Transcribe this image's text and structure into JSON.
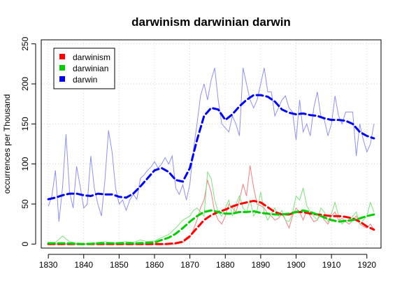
{
  "chart_data": {
    "type": "line",
    "title": "darwinism darwinian darwin",
    "xlabel": "",
    "ylabel": "occurrences per Thousand",
    "xlim": [
      1828,
      1924
    ],
    "ylim": [
      -5,
      255
    ],
    "xticks": [
      1830,
      1840,
      1850,
      1860,
      1870,
      1880,
      1890,
      1900,
      1910,
      1920
    ],
    "yticks": [
      0,
      50,
      100,
      150,
      200,
      250
    ],
    "grid": true,
    "legend_position": "top-left",
    "series": [
      {
        "name": "darwinism",
        "color": "#ff0000",
        "raw_color": "#f08080",
        "smooth": {
          "x": [
            1830,
            1835,
            1840,
            1845,
            1850,
            1855,
            1860,
            1863,
            1866,
            1868,
            1870,
            1872,
            1874,
            1876,
            1878,
            1880,
            1882,
            1884,
            1886,
            1888,
            1890,
            1892,
            1894,
            1896,
            1898,
            1900,
            1902,
            1904,
            1906,
            1908,
            1910,
            1912,
            1914,
            1916,
            1918,
            1920,
            1922
          ],
          "y": [
            0,
            0,
            0,
            0,
            0,
            0,
            0,
            0,
            1,
            3,
            10,
            20,
            30,
            36,
            40,
            43,
            47,
            50,
            52,
            54,
            52,
            46,
            40,
            37,
            37,
            40,
            40,
            38,
            37,
            36,
            35,
            35,
            34,
            32,
            28,
            22,
            18
          ]
        },
        "raw": {
          "x": [
            1830,
            1832,
            1834,
            1836,
            1838,
            1840,
            1842,
            1844,
            1846,
            1848,
            1850,
            1852,
            1854,
            1856,
            1858,
            1860,
            1862,
            1864,
            1866,
            1868,
            1870,
            1871,
            1872,
            1873,
            1874,
            1875,
            1876,
            1877,
            1878,
            1879,
            1880,
            1881,
            1882,
            1883,
            1884,
            1885,
            1886,
            1887,
            1888,
            1889,
            1890,
            1891,
            1892,
            1893,
            1894,
            1895,
            1896,
            1897,
            1898,
            1899,
            1900,
            1901,
            1902,
            1903,
            1904,
            1905,
            1906,
            1907,
            1908,
            1909,
            1910,
            1911,
            1912,
            1913,
            1914,
            1915,
            1916,
            1917,
            1918,
            1919,
            1920,
            1921,
            1922
          ],
          "y": [
            0,
            0,
            0,
            0,
            0,
            0,
            0,
            0,
            0,
            0,
            0,
            0,
            0,
            0,
            0,
            0,
            0,
            0,
            0,
            2,
            8,
            18,
            30,
            45,
            55,
            80,
            65,
            40,
            30,
            25,
            35,
            50,
            45,
            40,
            55,
            75,
            60,
            98,
            70,
            50,
            48,
            45,
            38,
            35,
            30,
            32,
            38,
            30,
            20,
            35,
            45,
            40,
            30,
            42,
            35,
            28,
            30,
            38,
            30,
            25,
            35,
            40,
            30,
            32,
            28,
            25,
            30,
            35,
            25,
            22,
            20,
            25,
            18
          ]
        }
      },
      {
        "name": "darwinian",
        "color": "#00cc00",
        "raw_color": "#80e080",
        "smooth": {
          "x": [
            1830,
            1835,
            1840,
            1845,
            1850,
            1855,
            1860,
            1862,
            1864,
            1866,
            1868,
            1870,
            1872,
            1874,
            1876,
            1878,
            1880,
            1882,
            1884,
            1886,
            1888,
            1890,
            1892,
            1894,
            1896,
            1898,
            1900,
            1902,
            1904,
            1906,
            1908,
            1910,
            1912,
            1914,
            1916,
            1918,
            1920,
            1922
          ],
          "y": [
            1,
            1,
            0,
            1,
            1,
            1,
            2,
            5,
            8,
            13,
            20,
            28,
            35,
            40,
            42,
            40,
            38,
            38,
            40,
            40,
            41,
            39,
            38,
            37,
            37,
            38,
            40,
            42,
            40,
            37,
            33,
            30,
            28,
            29,
            30,
            32,
            35,
            37
          ]
        },
        "raw": {
          "x": [
            1830,
            1832,
            1834,
            1836,
            1838,
            1840,
            1842,
            1844,
            1846,
            1848,
            1850,
            1852,
            1854,
            1856,
            1858,
            1860,
            1862,
            1864,
            1866,
            1868,
            1870,
            1871,
            1872,
            1873,
            1874,
            1875,
            1876,
            1877,
            1878,
            1879,
            1880,
            1881,
            1882,
            1883,
            1884,
            1885,
            1886,
            1887,
            1888,
            1889,
            1890,
            1891,
            1892,
            1893,
            1894,
            1895,
            1896,
            1897,
            1898,
            1899,
            1900,
            1901,
            1902,
            1903,
            1904,
            1905,
            1906,
            1907,
            1908,
            1909,
            1910,
            1911,
            1912,
            1913,
            1914,
            1915,
            1916,
            1917,
            1918,
            1919,
            1920,
            1921,
            1922
          ],
          "y": [
            0,
            2,
            10,
            3,
            1,
            0,
            1,
            2,
            3,
            1,
            2,
            3,
            2,
            5,
            3,
            4,
            8,
            12,
            20,
            30,
            35,
            42,
            45,
            40,
            35,
            90,
            82,
            55,
            40,
            35,
            45,
            55,
            35,
            50,
            60,
            45,
            40,
            55,
            35,
            42,
            65,
            40,
            30,
            38,
            45,
            35,
            42,
            30,
            28,
            38,
            60,
            55,
            70,
            48,
            40,
            35,
            30,
            45,
            40,
            28,
            38,
            52,
            35,
            25,
            30,
            28,
            35,
            40,
            25,
            30,
            35,
            52,
            40
          ]
        }
      },
      {
        "name": "darwin",
        "color": "#0000ee",
        "raw_color": "#9090f0",
        "smooth": {
          "x": [
            1830,
            1832,
            1834,
            1836,
            1838,
            1840,
            1842,
            1844,
            1846,
            1848,
            1850,
            1852,
            1854,
            1856,
            1858,
            1860,
            1862,
            1864,
            1866,
            1868,
            1870,
            1872,
            1874,
            1876,
            1878,
            1880,
            1882,
            1884,
            1886,
            1888,
            1890,
            1892,
            1894,
            1896,
            1898,
            1900,
            1902,
            1904,
            1906,
            1908,
            1910,
            1912,
            1914,
            1916,
            1918,
            1920,
            1922
          ],
          "y": [
            56,
            58,
            61,
            63,
            63,
            61,
            60,
            63,
            62,
            62,
            59,
            58,
            63,
            72,
            82,
            92,
            95,
            90,
            80,
            78,
            95,
            130,
            160,
            170,
            168,
            155,
            162,
            172,
            180,
            186,
            186,
            184,
            178,
            168,
            164,
            162,
            163,
            161,
            160,
            157,
            155,
            155,
            154,
            150,
            140,
            135,
            132
          ]
        },
        "raw": {
          "x": [
            1830,
            1831,
            1832,
            1833,
            1834,
            1835,
            1836,
            1837,
            1838,
            1839,
            1840,
            1841,
            1842,
            1843,
            1844,
            1845,
            1846,
            1847,
            1848,
            1849,
            1850,
            1851,
            1852,
            1853,
            1854,
            1855,
            1856,
            1857,
            1858,
            1859,
            1860,
            1861,
            1862,
            1863,
            1864,
            1865,
            1866,
            1867,
            1868,
            1869,
            1870,
            1871,
            1872,
            1873,
            1874,
            1875,
            1876,
            1877,
            1878,
            1879,
            1880,
            1881,
            1882,
            1883,
            1884,
            1885,
            1886,
            1887,
            1888,
            1889,
            1890,
            1891,
            1892,
            1893,
            1894,
            1895,
            1896,
            1897,
            1898,
            1899,
            1900,
            1901,
            1902,
            1903,
            1904,
            1905,
            1906,
            1907,
            1908,
            1909,
            1910,
            1911,
            1912,
            1913,
            1914,
            1915,
            1916,
            1917,
            1918,
            1919,
            1920,
            1921,
            1922
          ],
          "y": [
            47,
            60,
            92,
            28,
            70,
            137,
            65,
            45,
            97,
            72,
            45,
            50,
            110,
            70,
            50,
            35,
            80,
            142,
            115,
            70,
            50,
            55,
            42,
            55,
            62,
            56,
            82,
            86,
            92,
            96,
            103,
            95,
            100,
            108,
            100,
            110,
            70,
            62,
            74,
            55,
            75,
            118,
            150,
            185,
            200,
            180,
            205,
            220,
            180,
            150,
            145,
            140,
            160,
            150,
            135,
            220,
            200,
            180,
            170,
            180,
            200,
            220,
            190,
            190,
            160,
            170,
            180,
            185,
            170,
            165,
            130,
            180,
            140,
            150,
            135,
            170,
            190,
            160,
            155,
            135,
            150,
            185,
            160,
            150,
            165,
            165,
            165,
            110,
            150,
            130,
            115,
            125,
            150
          ]
        }
      }
    ]
  }
}
